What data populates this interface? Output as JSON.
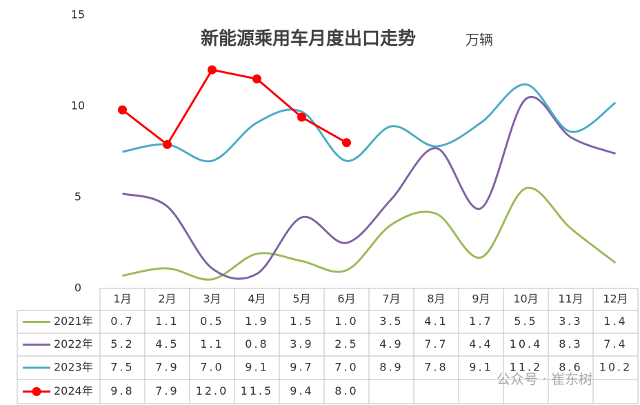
{
  "chart_data": {
    "type": "line",
    "title": "新能源乘用车月度出口走势",
    "subtitle": "万辆",
    "watermark": "公众号 · 崔东树",
    "categories": [
      "1月",
      "2月",
      "3月",
      "4月",
      "5月",
      "6月",
      "7月",
      "8月",
      "9月",
      "10月",
      "11月",
      "12月"
    ],
    "ylim": [
      0,
      15
    ],
    "yticks": [
      0,
      5,
      10,
      15
    ],
    "series": [
      {
        "name": "2021年",
        "color": "#9bbb59",
        "smooth": true,
        "markers": false,
        "values": [
          0.7,
          1.1,
          0.5,
          1.9,
          1.5,
          1.0,
          3.5,
          4.1,
          1.7,
          5.5,
          3.3,
          1.4
        ],
        "value_labels": [
          "0.7",
          "1.1",
          "0.5",
          "1.9",
          "1.5",
          "1.0",
          "3.5",
          "4.1",
          "1.7",
          "5.5",
          "3.3",
          "1.4"
        ]
      },
      {
        "name": "2022年",
        "color": "#8064a2",
        "smooth": true,
        "markers": false,
        "values": [
          5.2,
          4.5,
          1.1,
          0.8,
          3.9,
          2.5,
          4.9,
          7.7,
          4.4,
          10.4,
          8.3,
          7.4
        ],
        "value_labels": [
          "5.2",
          "4.5",
          "1.1",
          "0.8",
          "3.9",
          "2.5",
          "4.9",
          "7.7",
          "4.4",
          "10.4",
          "8.3",
          "7.4"
        ]
      },
      {
        "name": "2023年",
        "color": "#4bacc6",
        "smooth": true,
        "markers": false,
        "values": [
          7.5,
          7.9,
          7.0,
          9.1,
          9.7,
          7.0,
          8.9,
          7.8,
          9.1,
          11.2,
          8.6,
          10.2
        ],
        "value_labels": [
          "7.5",
          "7.9",
          "7.0",
          "9.1",
          "9.7",
          "7.0",
          "8.9",
          "7.8",
          "9.1",
          "11.2",
          "8.6",
          "10.2"
        ]
      },
      {
        "name": "2024年",
        "color": "#ff0000",
        "smooth": false,
        "markers": true,
        "values": [
          9.8,
          7.9,
          12.0,
          11.5,
          9.4,
          8.0,
          null,
          null,
          null,
          null,
          null,
          null
        ],
        "value_labels": [
          "9.8",
          "7.9",
          "12.0",
          "11.5",
          "9.4",
          "8.0",
          null,
          null,
          null,
          null,
          null,
          null
        ]
      }
    ]
  }
}
